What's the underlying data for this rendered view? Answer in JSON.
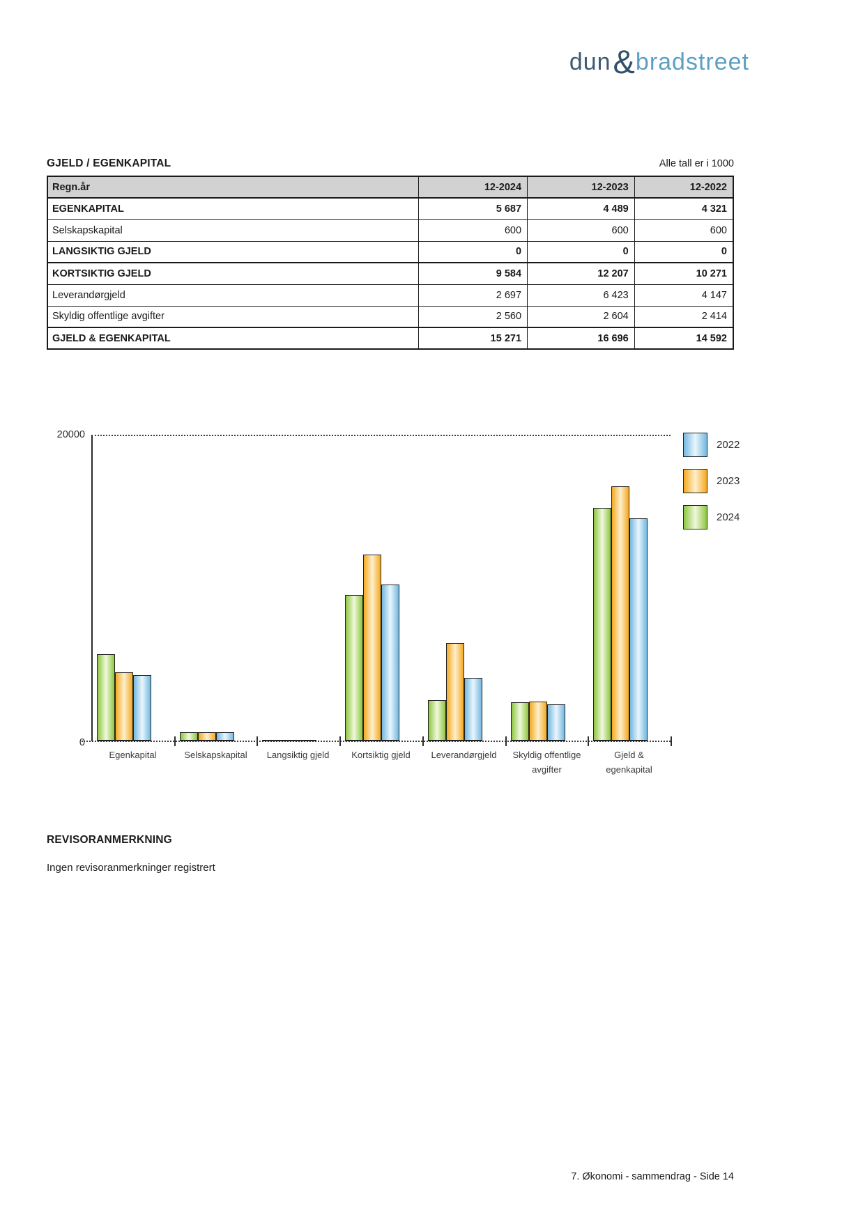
{
  "logo": {
    "part1": "dun",
    "amp": "&",
    "part2": "bradstreet",
    "color_part1": "#3e5a74",
    "color_amp": "#30506c",
    "color_part2": "#5d9fc3"
  },
  "section": {
    "title": "GJELD / EGENKAPITAL",
    "note": "Alle tall er i 1000"
  },
  "table": {
    "columns": [
      "Regn.år",
      "12-2024",
      "12-2023",
      "12-2022"
    ],
    "rows": [
      {
        "label": "EGENKAPITAL",
        "values": [
          "5 687",
          "4 489",
          "4 321"
        ]
      },
      {
        "label": "Selskapskapital",
        "values": [
          "600",
          "600",
          "600"
        ]
      },
      {
        "label": "LANGSIKTIG GJELD",
        "values": [
          "0",
          "0",
          "0"
        ]
      },
      {
        "label": "KORTSIKTIG GJELD",
        "values": [
          "9 584",
          "12 207",
          "10 271"
        ]
      },
      {
        "label": "Leverandørgjeld",
        "values": [
          "2 697",
          "6 423",
          "4 147"
        ]
      },
      {
        "label": "Skyldig offentlige avgifter",
        "values": [
          "2 560",
          "2 604",
          "2 414"
        ]
      },
      {
        "label": "GJELD & EGENKAPITAL",
        "values": [
          "15 271",
          "16 696",
          "14 592"
        ]
      }
    ],
    "header_bg": "#d2d2d2"
  },
  "chart_data": {
    "type": "bar",
    "title": "",
    "xlabel": "",
    "ylabel": "",
    "ylim": [
      0,
      20000
    ],
    "yticks": {
      "max": "20000",
      "min": "0"
    },
    "grid": "dotted lines at y=0 and y=20000 only",
    "legend_position": "right",
    "legend": [
      "2022",
      "2023",
      "2024"
    ],
    "categories": [
      {
        "id": "egenkapital",
        "lines": [
          "Egenkapital"
        ]
      },
      {
        "id": "selskapskapital",
        "lines": [
          "Selskapskapital"
        ]
      },
      {
        "id": "langsiktig-gjeld",
        "lines": [
          "Langsiktig gjeld"
        ]
      },
      {
        "id": "kortsiktig-gjeld",
        "lines": [
          "Kortsiktig gjeld"
        ]
      },
      {
        "id": "leverandorgjeld",
        "lines": [
          "Leverandørgjeld"
        ]
      },
      {
        "id": "skyldig-offentlige",
        "lines": [
          "Skyldig offentlige",
          "avgifter"
        ]
      },
      {
        "id": "gjeld-egenkapital",
        "lines": [
          "Gjeld &",
          "egenkapital"
        ]
      }
    ],
    "series": [
      {
        "name": "2024",
        "color_edge": "#8dc63f",
        "color_mid": "#f0f8dd",
        "values": [
          5687,
          600,
          0,
          9584,
          2697,
          2560,
          15271
        ]
      },
      {
        "name": "2023",
        "color_edge": "#f5a820",
        "color_mid": "#fdf0cc",
        "values": [
          4489,
          600,
          0,
          12207,
          6423,
          2604,
          16696
        ]
      },
      {
        "name": "2022",
        "color_edge": "#72b8e0",
        "color_mid": "#eaf6fd",
        "values": [
          4321,
          600,
          0,
          10271,
          4147,
          2414,
          14592
        ]
      }
    ],
    "series_draw_order_note": "left-to-right within each group: 2024 (green), 2023 (orange), 2022 (blue)"
  },
  "revisor": {
    "heading": "REVISORANMERKNING",
    "body": "Ingen revisoranmerkninger registrert"
  },
  "footer": {
    "text": "7. Økonomi - sammendrag - Side 14"
  }
}
